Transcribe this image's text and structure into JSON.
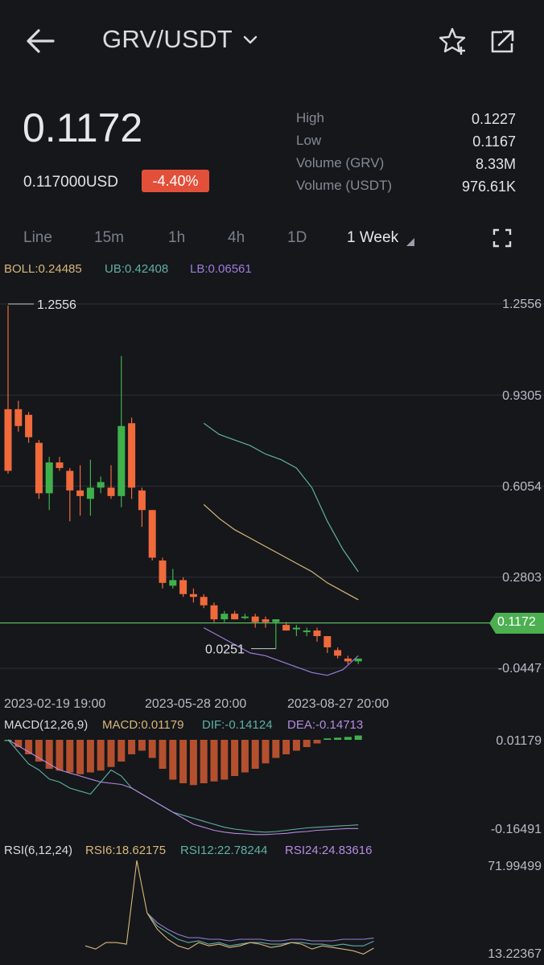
{
  "header": {
    "pair": "GRV/USDT",
    "icons": [
      "back-arrow-icon",
      "chevron-down-icon",
      "star-add-icon",
      "share-icon"
    ]
  },
  "ticker": {
    "price": "0.1172",
    "usd": "0.117000USD",
    "change": "-4.40%",
    "stats": [
      {
        "label": "High",
        "value": "0.1227"
      },
      {
        "label": "Low",
        "value": "0.1167"
      },
      {
        "label": "Volume (GRV)",
        "value": "8.33M"
      },
      {
        "label": "Volume (USDT)",
        "value": "976.61K"
      }
    ]
  },
  "intervals": {
    "tabs": [
      "Line",
      "15m",
      "1h",
      "4h",
      "1D",
      "1 Week"
    ],
    "active": "1 Week"
  },
  "boll": {
    "boll": "BOLL:0.24485",
    "ub": "UB:0.42408",
    "lb": "LB:0.06561"
  },
  "price_axis": [
    "1.2556",
    "0.9305",
    "0.6054",
    "0.2803",
    "0.1172",
    "-0.0447"
  ],
  "annotations": {
    "high": "1.2556",
    "low": "0.0251"
  },
  "dates": [
    "2023-02-19 19:00",
    "2023-05-28 20:00",
    "2023-08-27 20:00"
  ],
  "macd": {
    "title": "MACD(12,26,9)",
    "macd": "MACD:0.01179",
    "dif": "DIF:-0.14124",
    "dea": "DEA:-0.14713",
    "axis_top": "0.01179",
    "axis_bottom": "-0.16491"
  },
  "rsi": {
    "title": "RSI(6,12,24)",
    "rsi6": "RSI6:18.62175",
    "rsi12": "RSI12:22.78244",
    "rsi24": "RSI24:24.83616",
    "axis_top": "71.99499",
    "axis_bottom": "13.22367"
  },
  "colors": {
    "up": "#3fb14b",
    "down": "#f06a3b",
    "current": "#5cb85c",
    "boll": "#d9b77a",
    "ub": "#5fb0a2",
    "lb": "#9f7bd8",
    "dea": "#b58be0"
  },
  "chart_data": {
    "type": "candlestick",
    "interval": "1 Week",
    "ylim": [
      -0.0447,
      1.2556
    ],
    "yticks": [
      1.2556,
      0.9305,
      0.6054,
      0.2803,
      -0.0447
    ],
    "current_price": 0.1172,
    "candles": [
      {
        "o": 0.88,
        "c": 0.66,
        "h": 1.25,
        "l": 0.65
      },
      {
        "o": 0.88,
        "c": 0.82,
        "h": 0.91,
        "l": 0.8
      },
      {
        "o": 0.86,
        "c": 0.78,
        "h": 0.87,
        "l": 0.76
      },
      {
        "o": 0.76,
        "c": 0.58,
        "h": 0.77,
        "l": 0.56
      },
      {
        "o": 0.58,
        "c": 0.69,
        "h": 0.71,
        "l": 0.52
      },
      {
        "o": 0.69,
        "c": 0.67,
        "h": 0.71,
        "l": 0.66
      },
      {
        "o": 0.66,
        "c": 0.59,
        "h": 0.67,
        "l": 0.48
      },
      {
        "o": 0.59,
        "c": 0.57,
        "h": 0.68,
        "l": 0.5
      },
      {
        "o": 0.56,
        "c": 0.6,
        "h": 0.7,
        "l": 0.5
      },
      {
        "o": 0.6,
        "c": 0.62,
        "h": 0.64,
        "l": 0.58
      },
      {
        "o": 0.6,
        "c": 0.57,
        "h": 0.68,
        "l": 0.56
      },
      {
        "o": 0.57,
        "c": 0.82,
        "h": 1.07,
        "l": 0.53
      },
      {
        "o": 0.83,
        "c": 0.6,
        "h": 0.85,
        "l": 0.56
      },
      {
        "o": 0.59,
        "c": 0.52,
        "h": 0.6,
        "l": 0.46
      },
      {
        "o": 0.52,
        "c": 0.35,
        "h": 0.52,
        "l": 0.34
      },
      {
        "o": 0.34,
        "c": 0.26,
        "h": 0.35,
        "l": 0.24
      },
      {
        "o": 0.25,
        "c": 0.27,
        "h": 0.31,
        "l": 0.24
      },
      {
        "o": 0.27,
        "c": 0.22,
        "h": 0.28,
        "l": 0.21
      },
      {
        "o": 0.22,
        "c": 0.21,
        "h": 0.24,
        "l": 0.19
      },
      {
        "o": 0.21,
        "c": 0.18,
        "h": 0.22,
        "l": 0.17
      },
      {
        "o": 0.18,
        "c": 0.13,
        "h": 0.19,
        "l": 0.12
      },
      {
        "o": 0.13,
        "c": 0.15,
        "h": 0.16,
        "l": 0.12
      },
      {
        "o": 0.15,
        "c": 0.13,
        "h": 0.16,
        "l": 0.13
      },
      {
        "o": 0.14,
        "c": 0.14,
        "h": 0.15,
        "l": 0.13
      },
      {
        "o": 0.14,
        "c": 0.12,
        "h": 0.15,
        "l": 0.1
      },
      {
        "o": 0.13,
        "c": 0.12,
        "h": 0.14,
        "l": 0.1
      },
      {
        "o": 0.12,
        "c": 0.13,
        "h": 0.13,
        "l": 0.025
      },
      {
        "o": 0.11,
        "c": 0.09,
        "h": 0.12,
        "l": 0.09
      },
      {
        "o": 0.1,
        "c": 0.1,
        "h": 0.11,
        "l": 0.07
      },
      {
        "o": 0.09,
        "c": 0.09,
        "h": 0.1,
        "l": 0.07
      },
      {
        "o": 0.09,
        "c": 0.07,
        "h": 0.1,
        "l": 0.05
      },
      {
        "o": 0.07,
        "c": 0.03,
        "h": 0.07,
        "l": 0.01
      },
      {
        "o": 0.02,
        "c": 0.0,
        "h": 0.03,
        "l": -0.01
      },
      {
        "o": -0.01,
        "c": -0.02,
        "h": 0.0,
        "l": -0.03
      },
      {
        "o": -0.02,
        "c": -0.01,
        "h": -0.01,
        "l": -0.03
      }
    ],
    "boll_series": [
      {
        "name": "UB",
        "start_index": 19,
        "values": [
          0.83,
          0.79,
          0.77,
          0.75,
          0.72,
          0.7,
          0.67,
          0.6,
          0.48,
          0.38,
          0.3
        ]
      },
      {
        "name": "BOLL",
        "start_index": 19,
        "values": [
          0.54,
          0.49,
          0.45,
          0.42,
          0.39,
          0.36,
          0.33,
          0.3,
          0.26,
          0.23,
          0.2
        ]
      },
      {
        "name": "LB",
        "start_index": 19,
        "values": [
          0.1,
          0.07,
          0.04,
          0.01,
          0.0,
          -0.02,
          -0.04,
          -0.06,
          -0.07,
          -0.05,
          0.0
        ]
      }
    ],
    "annotations": [
      {
        "label": "1.2556",
        "value": 1.2556
      },
      {
        "label": "0.0251",
        "value": 0.0251
      }
    ],
    "macd_hist": [
      0,
      -0.02,
      -0.04,
      -0.06,
      -0.08,
      -0.085,
      -0.09,
      -0.095,
      -0.09,
      -0.085,
      -0.075,
      -0.06,
      -0.04,
      -0.03,
      -0.05,
      -0.08,
      -0.11,
      -0.12,
      -0.125,
      -0.12,
      -0.115,
      -0.11,
      -0.1,
      -0.09,
      -0.08,
      -0.065,
      -0.05,
      -0.04,
      -0.03,
      -0.02,
      -0.01,
      0.004,
      0.006,
      0.008,
      0.012
    ],
    "macd_dif": [
      0,
      -0.02,
      -0.04,
      -0.05,
      -0.065,
      -0.07,
      -0.08,
      -0.085,
      -0.09,
      -0.07,
      -0.05,
      -0.06,
      -0.08,
      -0.09,
      -0.1,
      -0.11,
      -0.12,
      -0.125,
      -0.13,
      -0.135,
      -0.14,
      -0.145,
      -0.148,
      -0.15,
      -0.152,
      -0.153,
      -0.152,
      -0.15,
      -0.148,
      -0.146,
      -0.145,
      -0.144,
      -0.143,
      -0.142,
      -0.141
    ],
    "macd_dea": [
      0,
      -0.01,
      -0.02,
      -0.03,
      -0.04,
      -0.05,
      -0.055,
      -0.06,
      -0.065,
      -0.07,
      -0.072,
      -0.074,
      -0.08,
      -0.09,
      -0.1,
      -0.11,
      -0.12,
      -0.13,
      -0.14,
      -0.145,
      -0.15,
      -0.153,
      -0.155,
      -0.156,
      -0.157,
      -0.157,
      -0.156,
      -0.155,
      -0.153,
      -0.152,
      -0.15,
      -0.149,
      -0.148,
      -0.147,
      -0.147
    ],
    "rsi_ylim": [
      13.22367,
      71.99499
    ],
    "rsi6": [
      null,
      null,
      null,
      null,
      null,
      null,
      20,
      18,
      22,
      22,
      21,
      72,
      40,
      30,
      24,
      20,
      18,
      22,
      20,
      21,
      19,
      20,
      22,
      21,
      19,
      20,
      22,
      21,
      18,
      20,
      19,
      18,
      17,
      15,
      18.6
    ],
    "rsi12": [
      null,
      null,
      null,
      null,
      null,
      null,
      null,
      null,
      null,
      null,
      null,
      null,
      40,
      32,
      28,
      24,
      22,
      23,
      21,
      22,
      20,
      21,
      22,
      22,
      21,
      21,
      22,
      22,
      21,
      21,
      20,
      21,
      20,
      20,
      22.8
    ],
    "rsi24": [
      null,
      null,
      null,
      null,
      null,
      null,
      null,
      null,
      null,
      null,
      null,
      null,
      40,
      34,
      30,
      27,
      25,
      25,
      24,
      24,
      23,
      24,
      24,
      24,
      23,
      23,
      24,
      24,
      23,
      23,
      23,
      24,
      24,
      24,
      24.8
    ]
  }
}
